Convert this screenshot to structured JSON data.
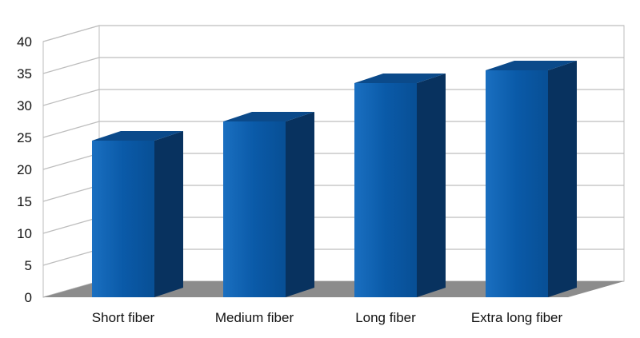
{
  "chart_data": {
    "type": "bar",
    "style": "3d-column",
    "categories": [
      "Short fiber",
      "Medium fiber",
      "Long fiber",
      "Extra long fiber"
    ],
    "values": [
      24.5,
      27.5,
      33.5,
      35.5
    ],
    "title": "",
    "xlabel": "",
    "ylabel": "",
    "ylim": [
      0,
      40
    ],
    "yticks": [
      "0",
      "5",
      "10",
      "15",
      "20",
      "25",
      "30",
      "35",
      "40"
    ],
    "grid": true,
    "legend": "none",
    "colors": {
      "bar_front": "#0a5aa8",
      "bar_top": "#0b4a8a",
      "bar_side": "#08325f",
      "floor": "#8c8c8c",
      "grid": "#bdbdbd",
      "wall": "#ffffff"
    }
  }
}
